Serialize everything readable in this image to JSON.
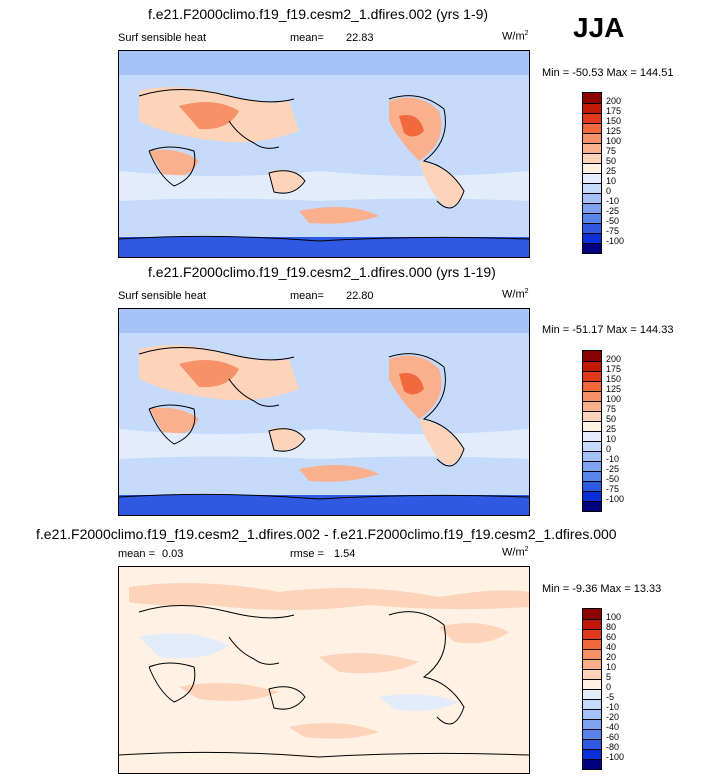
{
  "season": "JJA",
  "panels": [
    {
      "title": "f.e21.F2000climo.f19_f19.cesm2_1.dfires.002 (yrs 1-9)",
      "variable": "Surf sensible heat",
      "stat1_label": "mean=",
      "stat1_value": "22.83",
      "units": "W/m",
      "units_sup": "2",
      "minmax": "Min = -50.53 Max = 144.51",
      "levels": [
        "200",
        "175",
        "150",
        "125",
        "100",
        "75",
        "50",
        "25",
        "10",
        "0",
        "-10",
        "-25",
        "-50",
        "-75",
        "-100"
      ],
      "colors": [
        "#8b0000",
        "#c21807",
        "#e03a1a",
        "#f06a3e",
        "#f79167",
        "#fbb08d",
        "#fdd3b9",
        "#fff1e3",
        "#e2ecfb",
        "#c6dafb",
        "#a5c2f7",
        "#7fa3f1",
        "#5a84ea",
        "#2f59e2",
        "#0a2ed8",
        "#000080"
      ]
    },
    {
      "title": "f.e21.F2000climo.f19_f19.cesm2_1.dfires.000 (yrs 1-19)",
      "variable": "Surf sensible heat",
      "stat1_label": "mean=",
      "stat1_value": "22.80",
      "units": "W/m",
      "units_sup": "2",
      "minmax": "Min = -51.17 Max = 144.33",
      "levels": [
        "200",
        "175",
        "150",
        "125",
        "100",
        "75",
        "50",
        "25",
        "10",
        "0",
        "-10",
        "-25",
        "-50",
        "-75",
        "-100"
      ],
      "colors": [
        "#8b0000",
        "#c21807",
        "#e03a1a",
        "#f06a3e",
        "#f79167",
        "#fbb08d",
        "#fdd3b9",
        "#fff1e3",
        "#e2ecfb",
        "#c6dafb",
        "#a5c2f7",
        "#7fa3f1",
        "#5a84ea",
        "#2f59e2",
        "#0a2ed8",
        "#000080"
      ]
    },
    {
      "title": "f.e21.F2000climo.f19_f19.cesm2_1.dfires.002 - f.e21.F2000climo.f19_f19.cesm2_1.dfires.000",
      "variable": "",
      "stat1_label": "mean =",
      "stat1_value": "0.03",
      "stat2_label": "rmse =",
      "stat2_value": "1.54",
      "units": "W/m",
      "units_sup": "2",
      "minmax": "Min = -9.36 Max = 13.33",
      "levels": [
        "100",
        "80",
        "60",
        "40",
        "20",
        "10",
        "5",
        "0",
        "-5",
        "-10",
        "-20",
        "-40",
        "-60",
        "-80",
        "-100"
      ],
      "colors": [
        "#8b0000",
        "#c21807",
        "#e03a1a",
        "#f06a3e",
        "#f79167",
        "#fbb08d",
        "#fdd3b9",
        "#fff1e3",
        "#e2ecfb",
        "#c6dafb",
        "#a5c2f7",
        "#7fa3f1",
        "#5a84ea",
        "#2f59e2",
        "#0a2ed8",
        "#000080"
      ]
    }
  ],
  "chart_data": [
    {
      "type": "heatmap",
      "title": "f.e21.F2000climo.f19_f19.cesm2_1.dfires.002 (yrs 1-9)",
      "subtitle": "Surf sensible heat",
      "units": "W/m2",
      "mean": 22.83,
      "min": -50.53,
      "max": 144.51,
      "colorbar_levels": [
        200,
        175,
        150,
        125,
        100,
        75,
        50,
        25,
        10,
        0,
        -10,
        -25,
        -50,
        -75,
        -100
      ]
    },
    {
      "type": "heatmap",
      "title": "f.e21.F2000climo.f19_f19.cesm2_1.dfires.000 (yrs 1-19)",
      "subtitle": "Surf sensible heat",
      "units": "W/m2",
      "mean": 22.8,
      "min": -51.17,
      "max": 144.33,
      "colorbar_levels": [
        200,
        175,
        150,
        125,
        100,
        75,
        50,
        25,
        10,
        0,
        -10,
        -25,
        -50,
        -75,
        -100
      ]
    },
    {
      "type": "heatmap",
      "title": "f.e21.F2000climo.f19_f19.cesm2_1.dfires.002 - f.e21.F2000climo.f19_f19.cesm2_1.dfires.000",
      "units": "W/m2",
      "mean": 0.03,
      "rmse": 1.54,
      "min": -9.36,
      "max": 13.33,
      "colorbar_levels": [
        100,
        80,
        60,
        40,
        20,
        10,
        5,
        0,
        -5,
        -10,
        -20,
        -40,
        -60,
        -80,
        -100
      ]
    }
  ]
}
